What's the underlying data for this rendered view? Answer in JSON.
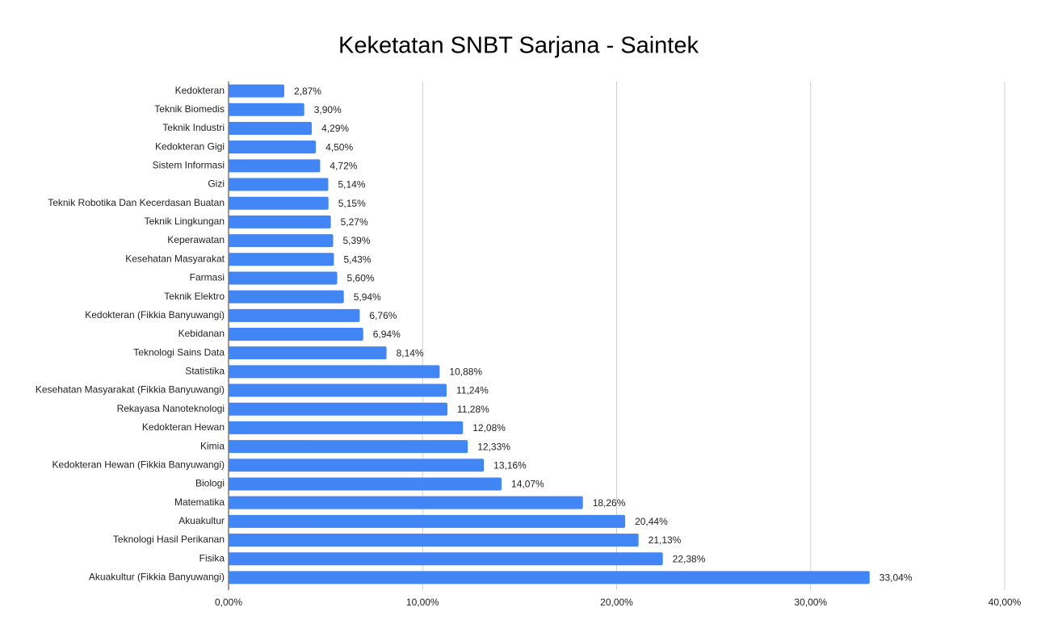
{
  "chart_data": {
    "type": "bar",
    "orientation": "horizontal",
    "title": "Keketatan SNBT Sarjana - Saintek",
    "categories": [
      "Kedokteran",
      "Teknik Biomedis",
      "Teknik Industri",
      "Kedokteran Gigi",
      "Sistem Informasi",
      "Gizi",
      "Teknik Robotika Dan Kecerdasan Buatan",
      "Teknik Lingkungan",
      "Keperawatan",
      "Kesehatan Masyarakat",
      "Farmasi",
      "Teknik Elektro",
      "Kedokteran (Fikkia Banyuwangi)",
      "Kebidanan",
      "Teknologi Sains Data",
      "Statistika",
      "Kesehatan Masyarakat (Fikkia Banyuwangi)",
      "Rekayasa Nanoteknologi",
      "Kedokteran Hewan",
      "Kimia",
      "Kedokteran Hewan (Fikkia Banyuwangi)",
      "Biologi",
      "Matematika",
      "Akuakultur",
      "Teknologi Hasil Perikanan",
      "Fisika",
      "Akuakultur (Fikkia Banyuwangi)"
    ],
    "values": [
      2.87,
      3.9,
      4.29,
      4.5,
      4.72,
      5.14,
      5.15,
      5.27,
      5.39,
      5.43,
      5.6,
      5.94,
      6.76,
      6.94,
      8.14,
      10.88,
      11.24,
      11.28,
      12.08,
      12.33,
      13.16,
      14.07,
      18.26,
      20.44,
      21.13,
      22.38,
      33.04
    ],
    "value_labels": [
      "2,87%",
      "3,90%",
      "4,29%",
      "4,50%",
      "4,72%",
      "5,14%",
      "5,15%",
      "5,27%",
      "5,39%",
      "5,43%",
      "5,60%",
      "5,94%",
      "6,76%",
      "6,94%",
      "8,14%",
      "10,88%",
      "11,24%",
      "11,28%",
      "12,08%",
      "12,33%",
      "13,16%",
      "14,07%",
      "18,26%",
      "20,44%",
      "21,13%",
      "22,38%",
      "33,04%"
    ],
    "color": "#4285f4",
    "xlim": [
      0,
      40
    ],
    "xticks": [
      {
        "value": 0,
        "label": "0,00%"
      },
      {
        "value": 10,
        "label": "10,00%"
      },
      {
        "value": 20,
        "label": "20,00%"
      },
      {
        "value": 30,
        "label": "30,00%"
      },
      {
        "value": 40,
        "label": "40,00%"
      }
    ],
    "grid": true
  }
}
